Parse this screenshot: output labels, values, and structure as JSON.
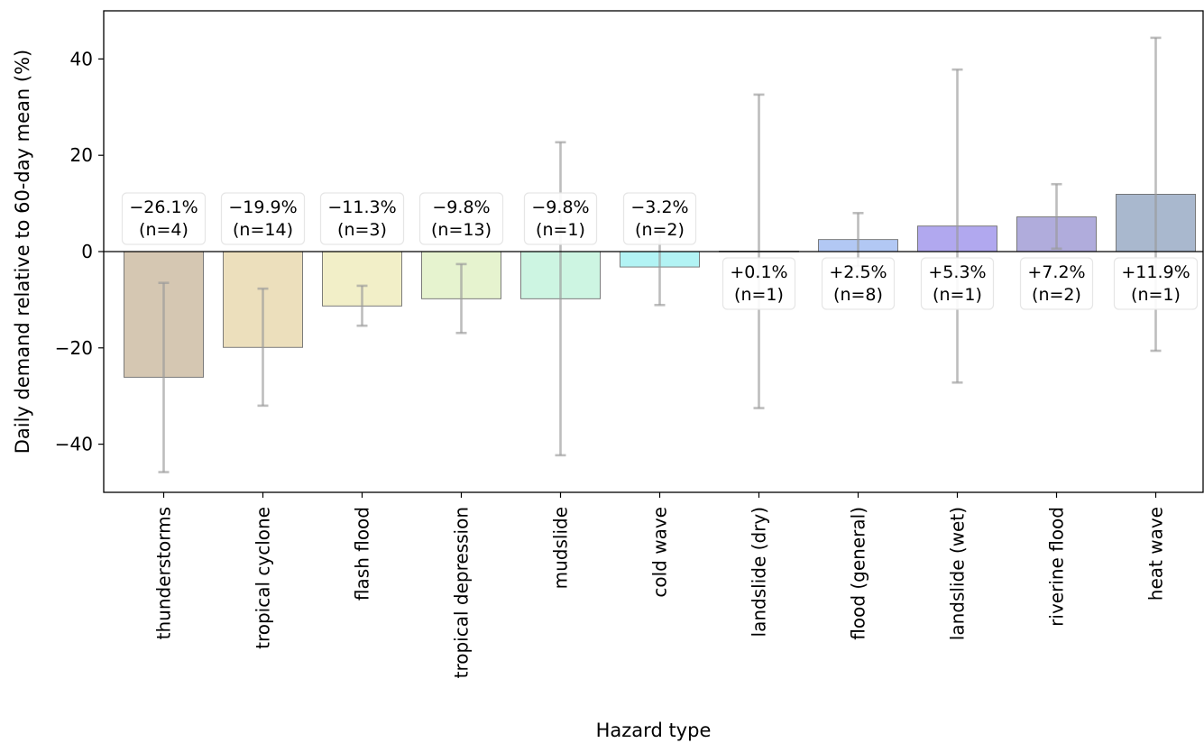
{
  "chart_data": {
    "type": "bar",
    "title": "",
    "xlabel": "Hazard type",
    "ylabel": "Daily demand relative to 60-day mean (%)",
    "ylim": [
      -50,
      50
    ],
    "yticks": [
      -40,
      -20,
      0,
      20,
      40
    ],
    "grid": false,
    "categories": [
      "thunderstorms",
      "tropical cyclone",
      "flash flood",
      "tropical depression",
      "mudslide",
      "cold wave",
      "landslide (dry)",
      "flood (general)",
      "landslide (wet)",
      "riverine flood",
      "heat wave"
    ],
    "values": [
      -26.1,
      -19.9,
      -11.3,
      -9.8,
      -9.8,
      -3.2,
      0.1,
      2.5,
      5.3,
      7.2,
      11.9
    ],
    "error_low": [
      -45.8,
      -32.0,
      -15.4,
      -16.9,
      -42.3,
      -11.1,
      -32.5,
      -3.0,
      -27.2,
      0.6,
      -20.6
    ],
    "error_high": [
      -6.5,
      -7.7,
      -7.1,
      -2.6,
      22.7,
      4.7,
      32.6,
      8.0,
      37.8,
      14.0,
      44.4
    ],
    "labels": [
      [
        "−26.1%",
        "(n=4)"
      ],
      [
        "−19.9%",
        "(n=14)"
      ],
      [
        "−11.3%",
        "(n=3)"
      ],
      [
        "−9.8%",
        "(n=13)"
      ],
      [
        "−9.8%",
        "(n=1)"
      ],
      [
        "−3.2%",
        "(n=2)"
      ],
      [
        "+0.1%",
        "(n=1)"
      ],
      [
        "+2.5%",
        "(n=8)"
      ],
      [
        "+5.3%",
        "(n=1)"
      ],
      [
        "+7.2%",
        "(n=2)"
      ],
      [
        "+11.9%",
        "(n=1)"
      ]
    ],
    "colors": [
      "#d5c7b2",
      "#ecdfbc",
      "#f2efc8",
      "#e6f3cf",
      "#cdf5e2",
      "#b2f3f4",
      "#c9cbe9",
      "#b2c8f4",
      "#b1a8ef",
      "#b0acdc",
      "#a9b8ce"
    ]
  }
}
